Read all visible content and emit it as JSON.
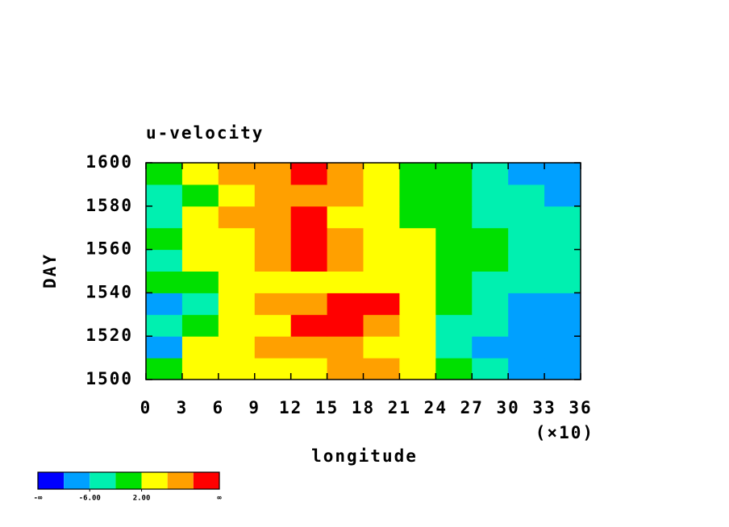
{
  "chart_data": {
    "type": "heatmap",
    "title": "u-velocity",
    "x_label": "longitude",
    "x_multiplier_label": "(×10)",
    "y_label": "DAY",
    "xlim": [
      0,
      36
    ],
    "xticks": [
      0,
      3,
      6,
      9,
      12,
      15,
      18,
      21,
      24,
      27,
      30,
      33,
      36
    ],
    "ylim": [
      1500,
      1600
    ],
    "yticks": [
      1500,
      1520,
      1540,
      1560,
      1580,
      1600
    ],
    "x": [
      1.5,
      4.5,
      7.5,
      10.5,
      13.5,
      16.5,
      19.5,
      22.5,
      25.5,
      28.5,
      31.5,
      34.5
    ],
    "y": [
      1505,
      1515,
      1525,
      1535,
      1545,
      1555,
      1565,
      1575,
      1585,
      1595
    ],
    "z": [
      [
        0,
        3,
        4,
        2,
        5,
        6,
        7,
        5,
        0,
        -5,
        -8,
        -7
      ],
      [
        -8,
        2,
        4,
        6,
        8,
        6,
        5,
        2,
        -4,
        -7,
        -9,
        -8
      ],
      [
        -4,
        0,
        3,
        5,
        10,
        11,
        9,
        4,
        -3,
        -6,
        -10,
        -8
      ],
      [
        -8,
        -3,
        2,
        6,
        9,
        12,
        11,
        3,
        -2,
        -5,
        -7,
        -9
      ],
      [
        -2,
        0,
        4,
        5,
        3,
        5,
        4,
        2,
        0,
        -3,
        -6,
        -5
      ],
      [
        -4,
        2,
        5,
        8,
        11,
        6,
        5,
        3,
        1,
        -2,
        -5,
        -6
      ],
      [
        0,
        3,
        4,
        6,
        12,
        7,
        4,
        2,
        0,
        -1,
        -4,
        -3
      ],
      [
        -3,
        2,
        6,
        7,
        10,
        5,
        3,
        1,
        -2,
        -5,
        -4,
        -6
      ],
      [
        -5,
        1,
        5,
        8,
        9,
        6,
        3,
        0,
        -1,
        -3,
        -5,
        -7
      ],
      [
        -2,
        4,
        6,
        7,
        11,
        7,
        3,
        1,
        -2,
        -4,
        -8,
        -10
      ]
    ],
    "levels": [
      -10,
      -6,
      -2,
      2,
      6,
      10
    ],
    "colors": [
      "#0000ff",
      "#00a0ff",
      "#00f0b0",
      "#00e000",
      "#ffff00",
      "#ffa000",
      "#ff0000"
    ],
    "colorbar": {
      "min_label": "-∞",
      "max_label": "∞",
      "ticks": [
        {
          "value": -6,
          "label": "-6.00"
        },
        {
          "value": 2,
          "label": "2.00"
        }
      ]
    }
  }
}
